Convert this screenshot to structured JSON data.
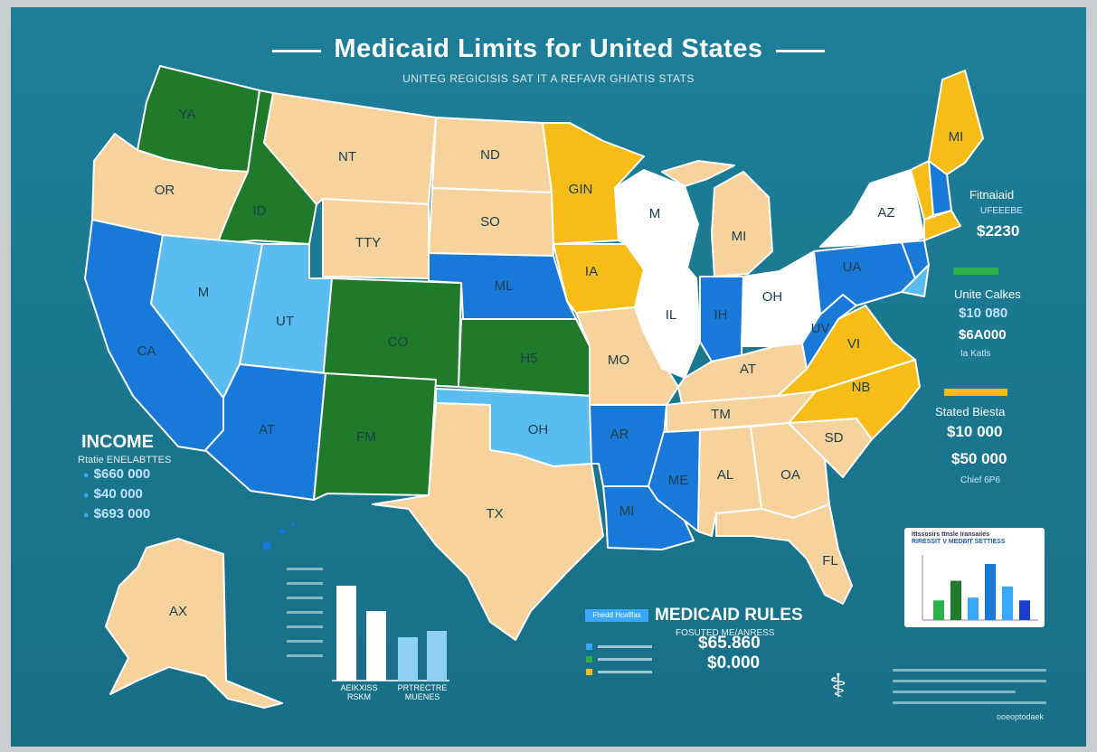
{
  "header": {
    "title": "Medicaid Limits for United States",
    "subtitle": "UNITEG REGICISIS SAT IT A REFAVR GHIATIS STATS"
  },
  "states": {
    "wa": "YA",
    "or": "OR",
    "id": "ID",
    "mt": "NT",
    "nd": "ND",
    "sd": "SO",
    "wy": "TTY",
    "ne": "ML",
    "ca": "CA",
    "nv": "M",
    "ut": "UT",
    "co": "CO",
    "ks": "H5",
    "az": "AT",
    "nm": "FM",
    "ok": "OH",
    "tx": "TX",
    "mn": "GIN",
    "ia": "IA",
    "mo": "MO",
    "ar": "AR",
    "la": "MI",
    "wi": "M",
    "il": "IL",
    "mi": "MI",
    "in": "IH",
    "oh": "OH",
    "ky": "AT",
    "tn": "TM",
    "ms": "ME",
    "al": "AL",
    "ga": "OA",
    "fl": "FL",
    "sc": "SD",
    "nc": "NB",
    "va": "VI",
    "wv": "UV",
    "pa": "UA",
    "ny": "AZ",
    "me": "MI",
    "ak": "AX"
  },
  "income_panel": {
    "title": "INCOME",
    "subtitle": "Rtatie ENELABTTES",
    "rows": [
      "$660 000",
      "$40 000",
      "$693 000"
    ]
  },
  "right_panel": {
    "heading1": "Fitnaiaid",
    "small1": "UFEEEBE",
    "value1": "$2230",
    "heading2": "Unite Calkes",
    "value2": "$10 080",
    "value3": "$6A000",
    "small2": "Ia Katls",
    "heading3": "Stated Biesta",
    "value4": "$10 000",
    "value5": "$50 000",
    "small3": "Chief 6P6"
  },
  "rules_panel": {
    "tag": "Fhedd Hcallfas",
    "title": "MEDICAID RULES",
    "subtitle": "FOSUTED ME/ANRESS",
    "value1": "$65.860",
    "value2": "$0.000"
  },
  "bar_chart_labels": {
    "left": "AEIKXISS\nRSKM",
    "right": "PRTRECTRE\nMUENES"
  },
  "mini_chart": {
    "title": "Ittssosirs ttnsle Iransaiies",
    "subtitle": "RIRESSIT V MEDBIT SETTIESS",
    "values": [
      35,
      70,
      40,
      100,
      60,
      35
    ]
  },
  "footer": {
    "tag": "ooeoptodaek"
  },
  "colors": {
    "background": "#1a7890",
    "tan": "#f6d39d",
    "blue": "#1979d9",
    "light_blue": "#5bbcf0",
    "green": "#207a2c",
    "yellow": "#f7bd17",
    "white": "#ffffff"
  }
}
